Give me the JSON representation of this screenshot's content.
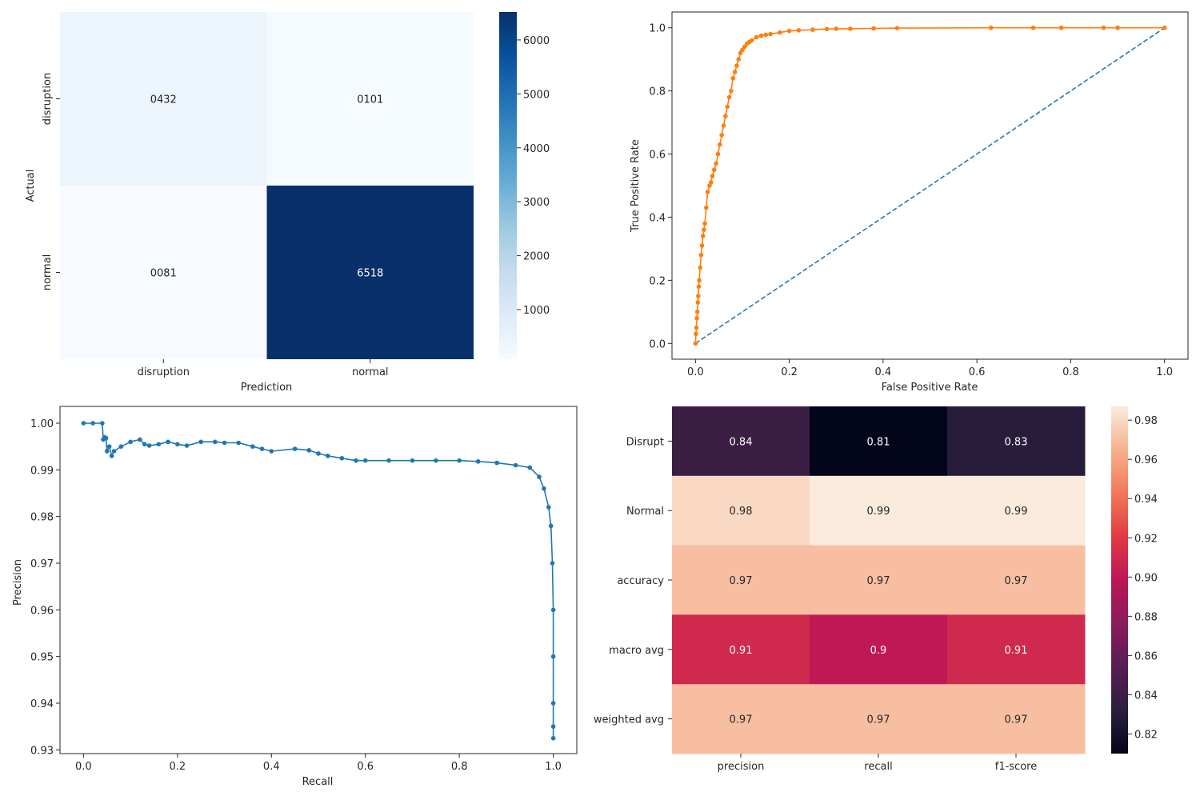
{
  "chart_data": [
    {
      "type": "heatmap",
      "ylabel": "Actual",
      "xlabel": "Prediction",
      "row_labels": [
        "disruption",
        "normal"
      ],
      "col_labels": [
        "disruption",
        "normal"
      ],
      "values": [
        [
          432,
          101
        ],
        [
          81,
          6518
        ]
      ],
      "cell_text": [
        [
          "0432",
          "0101"
        ],
        [
          "0081",
          "6518"
        ]
      ],
      "colormap": "Blues",
      "colorbar": {
        "min": 81,
        "max": 6518,
        "ticks": [
          1000,
          2000,
          3000,
          4000,
          5000,
          6000
        ]
      }
    },
    {
      "type": "line",
      "xlabel": "False Positive Rate",
      "ylabel": "True Positive Rate",
      "xlim": [
        -0.05,
        1.05
      ],
      "ylim": [
        -0.05,
        1.05
      ],
      "xticks": [
        0.0,
        0.2,
        0.4,
        0.6,
        0.8,
        1.0
      ],
      "yticks": [
        0.0,
        0.2,
        0.4,
        0.6,
        0.8,
        1.0
      ],
      "series": [
        {
          "color": "#1f77b4",
          "style": "dashed",
          "x": [
            0,
            1
          ],
          "y": [
            0,
            1
          ]
        },
        {
          "color": "#ff7f0e",
          "style": "solid-marker",
          "x": [
            0,
            0.001,
            0.002,
            0.003,
            0.004,
            0.005,
            0.006,
            0.007,
            0.008,
            0.01,
            0.012,
            0.014,
            0.016,
            0.018,
            0.02,
            0.023,
            0.026,
            0.03,
            0.033,
            0.036,
            0.04,
            0.044,
            0.048,
            0.052,
            0.056,
            0.06,
            0.064,
            0.068,
            0.072,
            0.076,
            0.08,
            0.084,
            0.088,
            0.092,
            0.096,
            0.1,
            0.105,
            0.11,
            0.115,
            0.12,
            0.13,
            0.14,
            0.15,
            0.16,
            0.18,
            0.2,
            0.22,
            0.25,
            0.28,
            0.3,
            0.33,
            0.38,
            0.43,
            0.63,
            0.72,
            0.78,
            0.87,
            0.9,
            1.0
          ],
          "y": [
            0,
            0.03,
            0.05,
            0.08,
            0.1,
            0.13,
            0.15,
            0.18,
            0.2,
            0.24,
            0.28,
            0.31,
            0.34,
            0.36,
            0.38,
            0.43,
            0.48,
            0.5,
            0.51,
            0.53,
            0.55,
            0.57,
            0.6,
            0.63,
            0.66,
            0.69,
            0.72,
            0.75,
            0.78,
            0.8,
            0.84,
            0.86,
            0.88,
            0.9,
            0.92,
            0.93,
            0.94,
            0.95,
            0.955,
            0.96,
            0.97,
            0.975,
            0.978,
            0.98,
            0.985,
            0.99,
            0.992,
            0.994,
            0.996,
            0.997,
            0.997,
            0.998,
            0.999,
            1.0,
            1.0,
            1.0,
            1.0,
            1.0,
            1.0
          ]
        }
      ]
    },
    {
      "type": "line",
      "xlabel": "Recall",
      "ylabel": "Precision",
      "xlim": [
        -0.05,
        1.05
      ],
      "ylim": [
        0.9292,
        1.0036
      ],
      "xticks": [
        0.0,
        0.2,
        0.4,
        0.6,
        0.8,
        1.0
      ],
      "yticks": [
        0.93,
        0.94,
        0.95,
        0.96,
        0.97,
        0.98,
        0.99,
        1.0
      ],
      "series": [
        {
          "color": "#1f77b4",
          "style": "solid-marker",
          "x": [
            0.0,
            0.02,
            0.04,
            0.042,
            0.045,
            0.048,
            0.05,
            0.055,
            0.06,
            0.065,
            0.08,
            0.1,
            0.12,
            0.13,
            0.14,
            0.16,
            0.18,
            0.2,
            0.22,
            0.25,
            0.28,
            0.3,
            0.33,
            0.36,
            0.38,
            0.4,
            0.45,
            0.48,
            0.5,
            0.52,
            0.55,
            0.58,
            0.6,
            0.65,
            0.7,
            0.75,
            0.8,
            0.84,
            0.88,
            0.92,
            0.95,
            0.97,
            0.98,
            0.99,
            0.995,
            0.998,
            1.0,
            1.0,
            1.0,
            1.0,
            1.0
          ],
          "y": [
            1.0,
            1.0,
            1.0,
            0.9965,
            0.997,
            0.9968,
            0.994,
            0.995,
            0.993,
            0.994,
            0.995,
            0.996,
            0.9965,
            0.9955,
            0.9952,
            0.9955,
            0.996,
            0.9955,
            0.9952,
            0.996,
            0.996,
            0.9958,
            0.9958,
            0.995,
            0.9945,
            0.994,
            0.9945,
            0.9942,
            0.9935,
            0.993,
            0.9925,
            0.992,
            0.992,
            0.992,
            0.992,
            0.992,
            0.992,
            0.9918,
            0.9915,
            0.991,
            0.9905,
            0.9885,
            0.986,
            0.982,
            0.978,
            0.97,
            0.96,
            0.95,
            0.94,
            0.935,
            0.9325
          ]
        }
      ]
    },
    {
      "type": "heatmap",
      "row_labels": [
        "Disrupt",
        "Normal",
        "accuracy",
        "macro avg",
        "weighted avg"
      ],
      "col_labels": [
        "precision",
        "recall",
        "f1-score"
      ],
      "values": [
        [
          0.84,
          0.81,
          0.83
        ],
        [
          0.98,
          0.99,
          0.99
        ],
        [
          0.97,
          0.97,
          0.97
        ],
        [
          0.91,
          0.9,
          0.91
        ],
        [
          0.97,
          0.97,
          0.97
        ]
      ],
      "cell_text": [
        [
          "0.84",
          "0.81",
          "0.83"
        ],
        [
          "0.98",
          "0.99",
          "0.99"
        ],
        [
          "0.97",
          "0.97",
          "0.97"
        ],
        [
          "0.91",
          "0.9",
          "0.91"
        ],
        [
          "0.97",
          "0.97",
          "0.97"
        ]
      ],
      "colormap": "rocket",
      "colorbar": {
        "min": 0.81,
        "max": 0.987,
        "ticks": [
          0.82,
          0.84,
          0.86,
          0.88,
          0.9,
          0.92,
          0.94,
          0.96,
          0.98
        ]
      }
    }
  ]
}
